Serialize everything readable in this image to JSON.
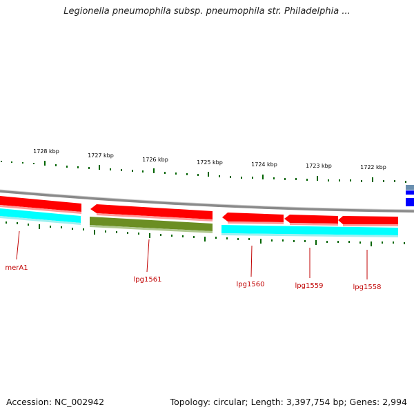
{
  "title": "Legionella pneumophila subsp. pneumophila str. Philadelphia ...",
  "footer": {
    "accession": "Accession: NC_002942",
    "summary": "Topology: circular; Length: 3,397,754 bp; Genes: 2,994"
  },
  "colors": {
    "forward_gene": "#ff0000",
    "reverse_strand_cyan": "#00ffff",
    "olive_gene": "#6b8e23",
    "backbone": "#808080",
    "blue_marker": "#0000ff",
    "tick": "#006400",
    "label": "#c00000"
  },
  "scale_labels": [
    "1728 kbp",
    "1727 kbp",
    "1726 kbp",
    "1725 kbp",
    "1724 kbp",
    "1723 kbp",
    "1722 kbp"
  ],
  "gene_labels": [
    "merA1",
    "lpg1561",
    "lpg1560",
    "lpg1559",
    "lpg1558"
  ]
}
